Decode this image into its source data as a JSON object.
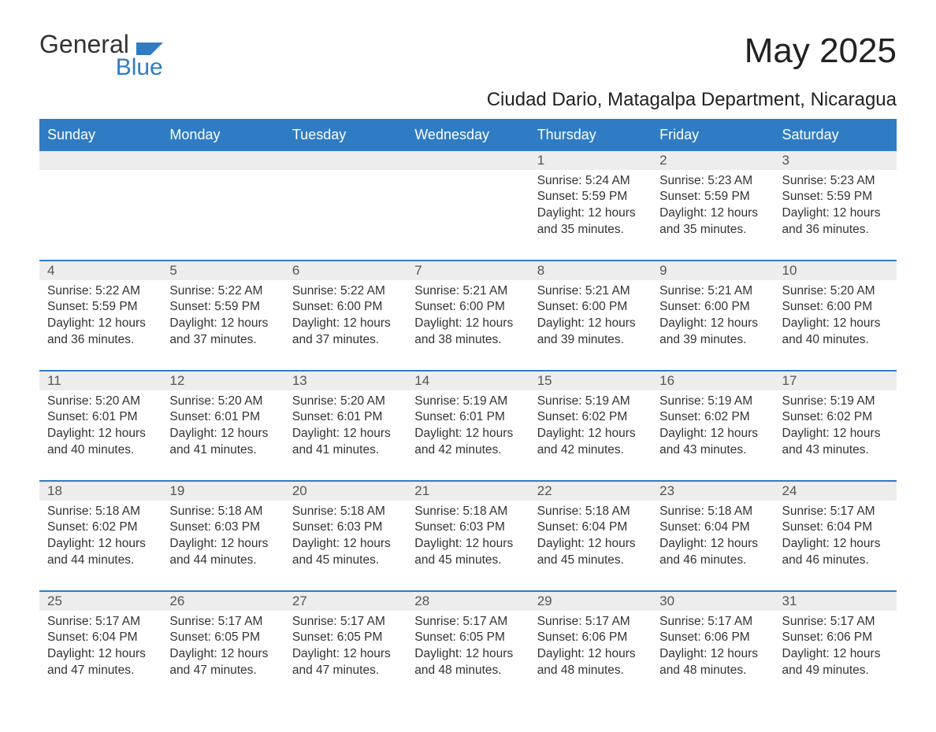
{
  "logo": {
    "text1": "General",
    "text2": "Blue"
  },
  "title": "May 2025",
  "location": "Ciudad Dario, Matagalpa Department, Nicaragua",
  "colors": {
    "header_bg": "#2f7cc4",
    "header_text": "#ffffff",
    "daynum_bg": "#ededed",
    "daynum_border": "#2f7cc4",
    "body_text": "#333333",
    "logo_accent": "#2f7cc4"
  },
  "weekdays": [
    "Sunday",
    "Monday",
    "Tuesday",
    "Wednesday",
    "Thursday",
    "Friday",
    "Saturday"
  ],
  "weeks": [
    [
      null,
      null,
      null,
      null,
      {
        "n": "1",
        "sr": "5:24 AM",
        "ss": "5:59 PM",
        "dl": "12 hours and 35 minutes."
      },
      {
        "n": "2",
        "sr": "5:23 AM",
        "ss": "5:59 PM",
        "dl": "12 hours and 35 minutes."
      },
      {
        "n": "3",
        "sr": "5:23 AM",
        "ss": "5:59 PM",
        "dl": "12 hours and 36 minutes."
      }
    ],
    [
      {
        "n": "4",
        "sr": "5:22 AM",
        "ss": "5:59 PM",
        "dl": "12 hours and 36 minutes."
      },
      {
        "n": "5",
        "sr": "5:22 AM",
        "ss": "5:59 PM",
        "dl": "12 hours and 37 minutes."
      },
      {
        "n": "6",
        "sr": "5:22 AM",
        "ss": "6:00 PM",
        "dl": "12 hours and 37 minutes."
      },
      {
        "n": "7",
        "sr": "5:21 AM",
        "ss": "6:00 PM",
        "dl": "12 hours and 38 minutes."
      },
      {
        "n": "8",
        "sr": "5:21 AM",
        "ss": "6:00 PM",
        "dl": "12 hours and 39 minutes."
      },
      {
        "n": "9",
        "sr": "5:21 AM",
        "ss": "6:00 PM",
        "dl": "12 hours and 39 minutes."
      },
      {
        "n": "10",
        "sr": "5:20 AM",
        "ss": "6:00 PM",
        "dl": "12 hours and 40 minutes."
      }
    ],
    [
      {
        "n": "11",
        "sr": "5:20 AM",
        "ss": "6:01 PM",
        "dl": "12 hours and 40 minutes."
      },
      {
        "n": "12",
        "sr": "5:20 AM",
        "ss": "6:01 PM",
        "dl": "12 hours and 41 minutes."
      },
      {
        "n": "13",
        "sr": "5:20 AM",
        "ss": "6:01 PM",
        "dl": "12 hours and 41 minutes."
      },
      {
        "n": "14",
        "sr": "5:19 AM",
        "ss": "6:01 PM",
        "dl": "12 hours and 42 minutes."
      },
      {
        "n": "15",
        "sr": "5:19 AM",
        "ss": "6:02 PM",
        "dl": "12 hours and 42 minutes."
      },
      {
        "n": "16",
        "sr": "5:19 AM",
        "ss": "6:02 PM",
        "dl": "12 hours and 43 minutes."
      },
      {
        "n": "17",
        "sr": "5:19 AM",
        "ss": "6:02 PM",
        "dl": "12 hours and 43 minutes."
      }
    ],
    [
      {
        "n": "18",
        "sr": "5:18 AM",
        "ss": "6:02 PM",
        "dl": "12 hours and 44 minutes."
      },
      {
        "n": "19",
        "sr": "5:18 AM",
        "ss": "6:03 PM",
        "dl": "12 hours and 44 minutes."
      },
      {
        "n": "20",
        "sr": "5:18 AM",
        "ss": "6:03 PM",
        "dl": "12 hours and 45 minutes."
      },
      {
        "n": "21",
        "sr": "5:18 AM",
        "ss": "6:03 PM",
        "dl": "12 hours and 45 minutes."
      },
      {
        "n": "22",
        "sr": "5:18 AM",
        "ss": "6:04 PM",
        "dl": "12 hours and 45 minutes."
      },
      {
        "n": "23",
        "sr": "5:18 AM",
        "ss": "6:04 PM",
        "dl": "12 hours and 46 minutes."
      },
      {
        "n": "24",
        "sr": "5:17 AM",
        "ss": "6:04 PM",
        "dl": "12 hours and 46 minutes."
      }
    ],
    [
      {
        "n": "25",
        "sr": "5:17 AM",
        "ss": "6:04 PM",
        "dl": "12 hours and 47 minutes."
      },
      {
        "n": "26",
        "sr": "5:17 AM",
        "ss": "6:05 PM",
        "dl": "12 hours and 47 minutes."
      },
      {
        "n": "27",
        "sr": "5:17 AM",
        "ss": "6:05 PM",
        "dl": "12 hours and 47 minutes."
      },
      {
        "n": "28",
        "sr": "5:17 AM",
        "ss": "6:05 PM",
        "dl": "12 hours and 48 minutes."
      },
      {
        "n": "29",
        "sr": "5:17 AM",
        "ss": "6:06 PM",
        "dl": "12 hours and 48 minutes."
      },
      {
        "n": "30",
        "sr": "5:17 AM",
        "ss": "6:06 PM",
        "dl": "12 hours and 48 minutes."
      },
      {
        "n": "31",
        "sr": "5:17 AM",
        "ss": "6:06 PM",
        "dl": "12 hours and 49 minutes."
      }
    ]
  ],
  "labels": {
    "sunrise": "Sunrise:",
    "sunset": "Sunset:",
    "daylight": "Daylight:"
  }
}
